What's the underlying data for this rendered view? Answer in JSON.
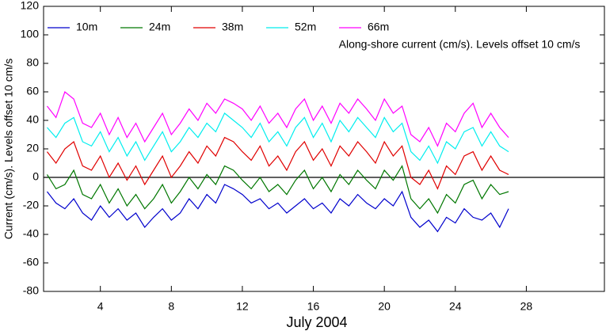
{
  "chart_data": {
    "type": "line",
    "annotation": "Along-shore current (cm/s). Levels offset 10 cm/s",
    "y_label": "Current (cm/s). Levels offset 10 cm/s",
    "x_label": "July 2004",
    "xlim": [
      0.8,
      32.4
    ],
    "xticks": [
      4,
      8,
      12,
      16,
      20,
      24,
      28
    ],
    "ylim": [
      -80,
      120
    ],
    "yticks": [
      -80,
      -60,
      -40,
      -20,
      0,
      20,
      40,
      60,
      80,
      100,
      120
    ],
    "hline": 0,
    "x": [
      1,
      1.5,
      2,
      2.5,
      3,
      3.5,
      4,
      4.5,
      5,
      5.5,
      6,
      6.5,
      7,
      7.5,
      8,
      8.5,
      9,
      9.5,
      10,
      10.5,
      11,
      11.5,
      12,
      12.5,
      13,
      13.5,
      14,
      14.5,
      15,
      15.5,
      16,
      16.5,
      17,
      17.5,
      18,
      18.5,
      19,
      19.5,
      20,
      20.5,
      21,
      21.5,
      22,
      22.5,
      23,
      23.5,
      24,
      24.5,
      25,
      25.5,
      26,
      26.5,
      27
    ],
    "series": [
      {
        "name": "10m",
        "color": "#0000cc",
        "values": [
          -10,
          -18,
          -22,
          -15,
          -25,
          -30,
          -20,
          -28,
          -22,
          -30,
          -25,
          -35,
          -28,
          -22,
          -30,
          -25,
          -15,
          -22,
          -12,
          -18,
          -5,
          -8,
          -12,
          -18,
          -15,
          -22,
          -18,
          -25,
          -20,
          -15,
          -22,
          -18,
          -25,
          -15,
          -20,
          -12,
          -18,
          -22,
          -15,
          -20,
          -10,
          -28,
          -35,
          -30,
          -38,
          -28,
          -32,
          -22,
          -28,
          -30,
          -25,
          -35,
          -22
        ]
      },
      {
        "name": "24m",
        "color": "#007700",
        "values": [
          2,
          -8,
          -5,
          5,
          -12,
          -15,
          -5,
          -18,
          -8,
          -20,
          -12,
          -22,
          -15,
          -5,
          -18,
          -10,
          0,
          -8,
          2,
          -5,
          8,
          5,
          -2,
          -8,
          0,
          -10,
          -5,
          -12,
          -2,
          5,
          -8,
          0,
          -10,
          2,
          -5,
          5,
          -2,
          -8,
          5,
          -2,
          8,
          -15,
          -22,
          -15,
          -25,
          -12,
          -18,
          -5,
          -2,
          -15,
          -5,
          -12,
          -10
        ]
      },
      {
        "name": "38m",
        "color": "#e00000",
        "values": [
          18,
          10,
          20,
          25,
          8,
          5,
          15,
          0,
          10,
          -2,
          8,
          -5,
          5,
          15,
          0,
          8,
          18,
          10,
          22,
          15,
          28,
          25,
          18,
          12,
          22,
          8,
          15,
          5,
          18,
          25,
          12,
          20,
          8,
          22,
          15,
          25,
          18,
          10,
          25,
          15,
          22,
          0,
          -5,
          5,
          -8,
          8,
          2,
          15,
          18,
          5,
          15,
          5,
          2
        ]
      },
      {
        "name": "52m",
        "color": "#00eeee",
        "values": [
          35,
          28,
          38,
          42,
          25,
          22,
          32,
          18,
          28,
          15,
          25,
          12,
          22,
          32,
          18,
          25,
          35,
          28,
          38,
          32,
          45,
          40,
          35,
          28,
          38,
          25,
          32,
          22,
          35,
          42,
          28,
          38,
          25,
          40,
          32,
          42,
          35,
          28,
          42,
          32,
          38,
          18,
          12,
          22,
          10,
          25,
          20,
          32,
          35,
          22,
          32,
          22,
          18
        ]
      },
      {
        "name": "66m",
        "color": "#ff00ff",
        "values": [
          50,
          42,
          60,
          55,
          38,
          35,
          45,
          30,
          42,
          28,
          38,
          25,
          35,
          45,
          30,
          38,
          48,
          40,
          52,
          45,
          55,
          52,
          48,
          40,
          50,
          38,
          45,
          35,
          48,
          55,
          40,
          50,
          38,
          52,
          45,
          55,
          48,
          40,
          55,
          45,
          50,
          30,
          25,
          35,
          22,
          38,
          32,
          45,
          52,
          35,
          45,
          35,
          28
        ]
      }
    ]
  }
}
